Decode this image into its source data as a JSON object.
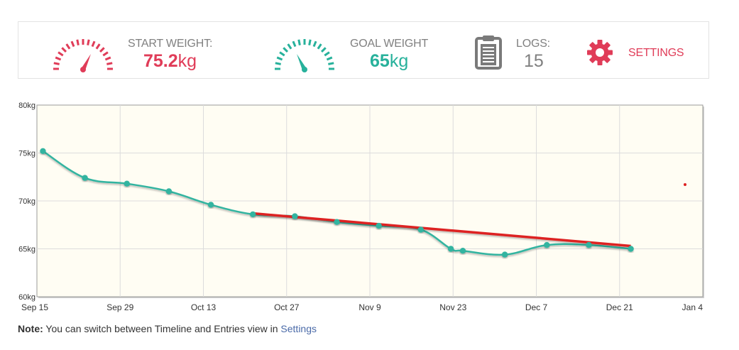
{
  "stats": {
    "start": {
      "label": "START WEIGHT:",
      "value": "75.2",
      "unit": "kg",
      "gauge_icon": "speedometer-low-icon",
      "color": "#e03c58"
    },
    "goal": {
      "label": "GOAL WEIGHT",
      "value": "65",
      "unit": "kg",
      "gauge_icon": "speedometer-high-icon",
      "color": "#27b19b"
    },
    "logs": {
      "label": "LOGS:",
      "value": "15",
      "icon": "clipboard-icon"
    },
    "settings": {
      "label": "SETTINGS",
      "icon": "gear-icon",
      "color": "#e03c58"
    }
  },
  "chart_data": {
    "type": "line",
    "y_ticks": [
      "80kg",
      "75kg",
      "70kg",
      "65kg",
      "60kg"
    ],
    "ylim": [
      60,
      80
    ],
    "y_unit": "kg",
    "x_ticks": [
      "Sep 15",
      "Sep 29",
      "Oct 13",
      "Oct 27",
      "Nov 9",
      "Nov 23",
      "Dec 7",
      "Dec 21",
      "Jan 4"
    ],
    "xlim": [
      "2014-09-15",
      "2015-01-04"
    ],
    "grid": true,
    "background": "#fffdf3",
    "series": [
      {
        "color": "#33b4a0",
        "points": [
          {
            "x": "2014-09-16",
            "y": 75.2
          },
          {
            "x": "2014-09-23",
            "y": 72.4
          },
          {
            "x": "2014-09-30",
            "y": 71.8
          },
          {
            "x": "2014-10-07",
            "y": 71.0
          },
          {
            "x": "2014-10-14",
            "y": 69.6
          },
          {
            "x": "2014-10-21",
            "y": 68.6
          },
          {
            "x": "2014-10-28",
            "y": 68.4
          },
          {
            "x": "2014-11-04",
            "y": 67.8
          },
          {
            "x": "2014-11-11",
            "y": 67.4
          },
          {
            "x": "2014-11-18",
            "y": 67.0
          },
          {
            "x": "2014-11-23",
            "y": 65.0
          },
          {
            "x": "2014-11-25",
            "y": 64.8
          },
          {
            "x": "2014-12-02",
            "y": 64.4
          },
          {
            "x": "2014-12-09",
            "y": 65.4
          },
          {
            "x": "2014-12-16",
            "y": 65.4
          },
          {
            "x": "2014-12-23",
            "y": 65.0
          }
        ]
      },
      {
        "color": "#dd2222",
        "points": [
          {
            "x": "2014-10-21",
            "y": 68.7
          },
          {
            "x": "2014-12-23",
            "y": 65.3
          }
        ]
      }
    ],
    "legend_marker": {
      "color": "#dd2222",
      "x": "2015-01-01",
      "y": 71.7
    }
  },
  "note": {
    "bold": "Note:",
    "text": " You can switch between Timeline and Entries view in ",
    "link": "Settings"
  }
}
